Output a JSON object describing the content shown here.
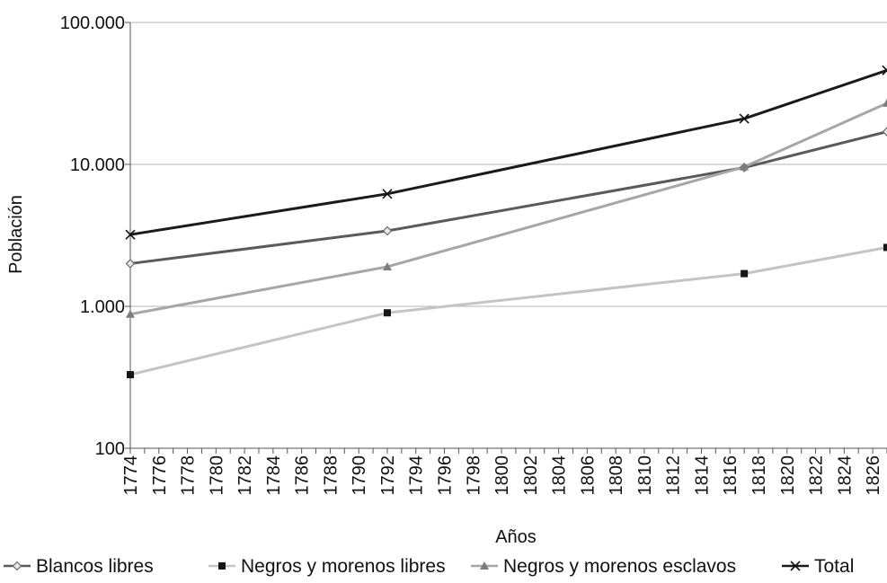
{
  "chart_data": {
    "type": "line",
    "title": "",
    "xlabel": "Años",
    "ylabel": "Población",
    "y_scale": "log",
    "ylim": [
      100,
      100000
    ],
    "xlim": [
      1774,
      1827
    ],
    "y_ticks": [
      100,
      1000,
      10000,
      100000
    ],
    "y_tick_labels": [
      "100",
      "1.000",
      "10.000",
      "100.000"
    ],
    "x_ticks": [
      1774,
      1776,
      1778,
      1780,
      1782,
      1784,
      1786,
      1788,
      1790,
      1792,
      1794,
      1796,
      1798,
      1800,
      1802,
      1804,
      1806,
      1808,
      1810,
      1812,
      1814,
      1816,
      1818,
      1820,
      1822,
      1824,
      1826
    ],
    "x_tick_labels": [
      "1774",
      "1776",
      "1778",
      "1780",
      "1782",
      "1784",
      "1786",
      "1788",
      "1790",
      "1792",
      "1794",
      "1796",
      "1798",
      "1800",
      "1802",
      "1804",
      "1806",
      "1808",
      "1810",
      "1812",
      "1814",
      "1816",
      "1818",
      "1820",
      "1822",
      "1824",
      "1826"
    ],
    "grid": "horizontal",
    "legend_position": "bottom",
    "x": [
      1774,
      1792,
      1817,
      1827
    ],
    "series": [
      {
        "name": "Blancos libres",
        "values": [
          2000,
          3400,
          9500,
          17000
        ],
        "color": "#5a5a5a",
        "marker": "diamond"
      },
      {
        "name": "Negros y morenos libres",
        "values": [
          330,
          900,
          1700,
          2600
        ],
        "color": "#c4c4c4",
        "marker": "square"
      },
      {
        "name": "Negros y morenos esclavos",
        "values": [
          880,
          1900,
          9600,
          27000
        ],
        "color": "#a6a6a6",
        "marker": "triangle"
      },
      {
        "name": "Total",
        "values": [
          3200,
          6200,
          21000,
          46000
        ],
        "color": "#1a1a1a",
        "marker": "x"
      }
    ]
  }
}
